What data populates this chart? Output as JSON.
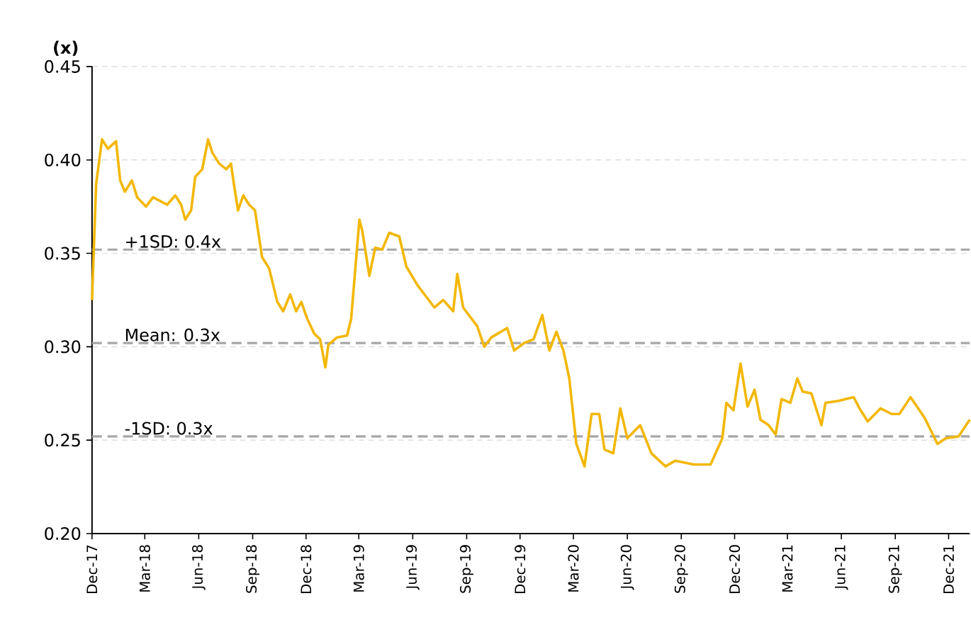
{
  "chart_data": {
    "type": "line",
    "ylabel": "(x)",
    "x": [
      "2017-12-01",
      "2017-12-08",
      "2017-12-18",
      "2017-12-28",
      "2018-01-11",
      "2018-01-18",
      "2018-01-26",
      "2018-02-07",
      "2018-02-16",
      "2018-03-03",
      "2018-03-15",
      "2018-03-27",
      "2018-04-08",
      "2018-04-22",
      "2018-05-02",
      "2018-05-09",
      "2018-05-19",
      "2018-05-26",
      "2018-06-07",
      "2018-06-17",
      "2018-06-24",
      "2018-07-06",
      "2018-07-18",
      "2018-07-26",
      "2018-07-31",
      "2018-08-07",
      "2018-08-16",
      "2018-08-26",
      "2018-09-05",
      "2018-09-17",
      "2018-09-29",
      "2018-10-13",
      "2018-10-23",
      "2018-11-04",
      "2018-11-14",
      "2018-11-23",
      "2018-12-03",
      "2018-12-15",
      "2018-12-25",
      "2019-01-03",
      "2019-01-08",
      "2019-01-23",
      "2019-02-09",
      "2019-02-16",
      "2019-02-26",
      "2019-03-02",
      "2019-03-07",
      "2019-03-19",
      "2019-03-29",
      "2019-04-10",
      "2019-04-22",
      "2019-05-09",
      "2019-05-21",
      "2019-06-09",
      "2019-07-08",
      "2019-07-23",
      "2019-08-09",
      "2019-08-16",
      "2019-08-26",
      "2019-09-19",
      "2019-10-01",
      "2019-10-13",
      "2019-11-09",
      "2019-11-21",
      "2019-12-08",
      "2019-12-24",
      "2020-01-08",
      "2020-01-20",
      "2020-02-01",
      "2020-02-13",
      "2020-02-23",
      "2020-03-06",
      "2020-03-20",
      "2020-04-01",
      "2020-04-14",
      "2020-04-23",
      "2020-05-08",
      "2020-05-20",
      "2020-06-01",
      "2020-06-23",
      "2020-07-12",
      "2020-08-05",
      "2020-08-22",
      "2020-09-22",
      "2020-10-21",
      "2020-11-10",
      "2020-11-17",
      "2020-11-29",
      "2020-12-11",
      "2020-12-23",
      "2021-01-04",
      "2021-01-14",
      "2021-01-28",
      "2021-02-09",
      "2021-02-19",
      "2021-03-06",
      "2021-03-18",
      "2021-03-27",
      "2021-04-11",
      "2021-04-28",
      "2021-05-05",
      "2021-05-27",
      "2021-06-08",
      "2021-06-22",
      "2021-07-02",
      "2021-07-16",
      "2021-08-07",
      "2021-08-26",
      "2021-09-08",
      "2021-09-27",
      "2021-10-21",
      "2021-11-12",
      "2021-11-26",
      "2021-12-18",
      "2022-01-06"
    ],
    "series": [
      {
        "color": "#f2b705",
        "values": [
          0.325,
          0.387,
          0.411,
          0.406,
          0.41,
          0.389,
          0.383,
          0.389,
          0.38,
          0.375,
          0.38,
          0.378,
          0.376,
          0.381,
          0.376,
          0.368,
          0.373,
          0.391,
          0.395,
          0.411,
          0.404,
          0.398,
          0.395,
          0.398,
          0.387,
          0.373,
          0.381,
          0.376,
          0.373,
          0.348,
          0.342,
          0.324,
          0.319,
          0.328,
          0.319,
          0.324,
          0.315,
          0.307,
          0.304,
          0.289,
          0.301,
          0.305,
          0.306,
          0.315,
          0.353,
          0.368,
          0.362,
          0.338,
          0.353,
          0.352,
          0.361,
          0.359,
          0.343,
          0.333,
          0.321,
          0.325,
          0.319,
          0.339,
          0.321,
          0.311,
          0.3,
          0.305,
          0.31,
          0.298,
          0.302,
          0.304,
          0.317,
          0.298,
          0.308,
          0.298,
          0.283,
          0.248,
          0.236,
          0.264,
          0.264,
          0.245,
          0.243,
          0.267,
          0.251,
          0.258,
          0.243,
          0.236,
          0.239,
          0.237,
          0.237,
          0.251,
          0.27,
          0.266,
          0.291,
          0.268,
          0.277,
          0.261,
          0.258,
          0.253,
          0.272,
          0.27,
          0.283,
          0.276,
          0.275,
          0.258,
          0.27,
          0.271,
          0.272,
          0.273,
          0.267,
          0.26,
          0.267,
          0.264,
          0.264,
          0.273,
          0.262,
          0.248,
          0.251,
          0.252,
          0.261
        ]
      }
    ],
    "xlim": [
      "2017-12-01",
      "2022-01-06"
    ],
    "xticks": [
      {
        "value": "2017-12",
        "label": "Dec-17"
      },
      {
        "value": "2018-03",
        "label": "Mar-18"
      },
      {
        "value": "2018-06",
        "label": "Jun-18"
      },
      {
        "value": "2018-09",
        "label": "Sep-18"
      },
      {
        "value": "2018-12",
        "label": "Dec-18"
      },
      {
        "value": "2019-03",
        "label": "Mar-19"
      },
      {
        "value": "2019-06",
        "label": "Jun-19"
      },
      {
        "value": "2019-09",
        "label": "Sep-19"
      },
      {
        "value": "2019-12",
        "label": "Dec-19"
      },
      {
        "value": "2020-03",
        "label": "Mar-20"
      },
      {
        "value": "2020-06",
        "label": "Jun-20"
      },
      {
        "value": "2020-09",
        "label": "Sep-20"
      },
      {
        "value": "2020-12",
        "label": "Dec-20"
      },
      {
        "value": "2021-03",
        "label": "Mar-21"
      },
      {
        "value": "2021-06",
        "label": "Jun-21"
      },
      {
        "value": "2021-09",
        "label": "Sep-21"
      },
      {
        "value": "2021-12",
        "label": "Dec-21"
      }
    ],
    "ylim": [
      0.2,
      0.45
    ],
    "yticks": [
      {
        "value": 0.2,
        "label": "0.20"
      },
      {
        "value": 0.25,
        "label": "0.25"
      },
      {
        "value": 0.3,
        "label": "0.30"
      },
      {
        "value": 0.35,
        "label": "0.35"
      },
      {
        "value": 0.4,
        "label": "0.40"
      },
      {
        "value": 0.45,
        "label": "0.45"
      }
    ],
    "grid": "y",
    "ref_lines": [
      {
        "axis": "y",
        "value": 0.352,
        "label": "+1SD: 0.4x",
        "color": "#a6a6a6",
        "line_style": "dashed"
      },
      {
        "axis": "y",
        "value": 0.302,
        "label": "Mean: 0.3x",
        "color": "#a6a6a6",
        "line_style": "dashed"
      },
      {
        "axis": "y",
        "value": 0.252,
        "label": "-1SD: 0.3x",
        "color": "#a6a6a6",
        "line_style": "dashed"
      }
    ]
  }
}
